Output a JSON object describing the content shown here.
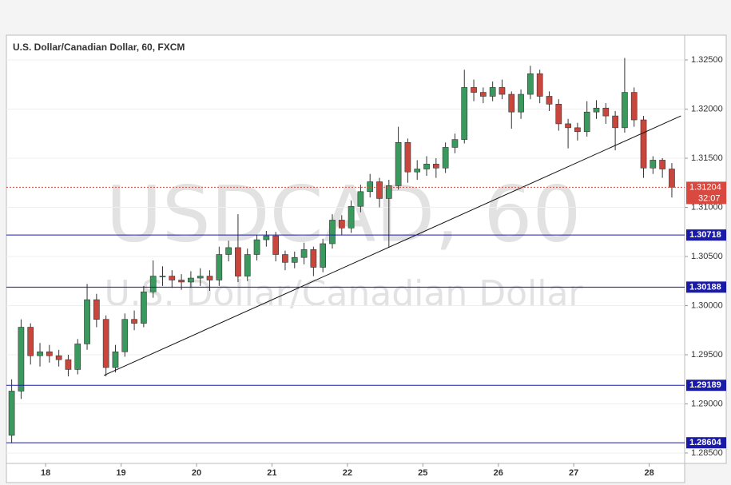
{
  "chart_data": {
    "type": "candlestick",
    "title": "U.S. Dollar/Canadian Dollar, 60, FXCM",
    "watermark": "USDCAD, 60",
    "watermark_sub": "U.S. Dollar/Canadian Dollar",
    "up_color": "#3a9a5e",
    "down_color": "#c9463d",
    "x": [
      -0.45,
      -0.325,
      -0.2,
      -0.075,
      0.05,
      0.175,
      0.3,
      0.425,
      0.55,
      0.675,
      0.8,
      0.925,
      1.05,
      1.175,
      1.3,
      1.425,
      1.55,
      1.675,
      1.8,
      1.925,
      2.05,
      2.175,
      2.3,
      2.425,
      2.55,
      2.675,
      2.8,
      2.925,
      3.05,
      3.175,
      3.3,
      3.425,
      3.55,
      3.675,
      3.8,
      3.925,
      4.05,
      4.175,
      4.3,
      4.425,
      4.55,
      4.675,
      4.8,
      4.925,
      5.05,
      5.175,
      5.3,
      5.425,
      5.55,
      5.675,
      5.8,
      5.925,
      6.05,
      6.175,
      6.3,
      6.425,
      6.55,
      6.675,
      6.8,
      6.925,
      7.05,
      7.175,
      7.3,
      7.425,
      7.55,
      7.675,
      7.8,
      7.925,
      8.05,
      8.175,
      8.3
    ],
    "open": [
      1.2868,
      1.2913,
      1.2978,
      1.2949,
      1.2953,
      1.2949,
      1.2945,
      1.2935,
      1.2961,
      1.3006,
      1.2986,
      1.2937,
      1.2953,
      1.2986,
      1.2982,
      1.3014,
      1.303,
      1.303,
      1.3026,
      1.3024,
      1.3028,
      1.303,
      1.3026,
      1.3052,
      1.3059,
      1.303,
      1.3052,
      1.3067,
      1.3071,
      1.3052,
      1.3044,
      1.3049,
      1.3057,
      1.3039,
      1.3063,
      1.3087,
      1.3079,
      1.3101,
      1.3116,
      1.3126,
      1.3109,
      1.3122,
      1.3166,
      1.3136,
      1.3139,
      1.3144,
      1.314,
      1.3161,
      1.3169,
      1.3222,
      1.3217,
      1.3213,
      1.3222,
      1.3215,
      1.3197,
      1.3215,
      1.3236,
      1.3213,
      1.3205,
      1.3185,
      1.3181,
      1.3177,
      1.3197,
      1.3201,
      1.3193,
      1.3181,
      1.3217,
      1.3189,
      1.314,
      1.3148,
      1.3139
    ],
    "high": [
      1.2925,
      1.2986,
      1.2982,
      1.2962,
      1.296,
      1.2955,
      1.295,
      1.2966,
      1.3022,
      1.3012,
      1.299,
      1.296,
      1.2992,
      1.2995,
      1.302,
      1.3046,
      1.304,
      1.3036,
      1.3032,
      1.3035,
      1.3038,
      1.3036,
      1.306,
      1.3066,
      1.3093,
      1.3058,
      1.3072,
      1.3076,
      1.3075,
      1.3056,
      1.3055,
      1.3064,
      1.306,
      1.3068,
      1.3093,
      1.3092,
      1.3107,
      1.3123,
      1.3134,
      1.313,
      1.3128,
      1.3182,
      1.317,
      1.3148,
      1.3152,
      1.315,
      1.3166,
      1.3175,
      1.324,
      1.323,
      1.3222,
      1.3228,
      1.323,
      1.3218,
      1.322,
      1.3244,
      1.324,
      1.3218,
      1.321,
      1.319,
      1.3186,
      1.3208,
      1.3209,
      1.3206,
      1.3198,
      1.3252,
      1.3222,
      1.3193,
      1.3152,
      1.315,
      1.3145
    ],
    "low": [
      1.286,
      1.2905,
      1.294,
      1.2938,
      1.2942,
      1.2938,
      1.2928,
      1.293,
      1.2955,
      1.2978,
      1.2928,
      1.2932,
      1.2948,
      1.2975,
      1.2978,
      1.3008,
      1.302,
      1.3018,
      1.3016,
      1.3018,
      1.302,
      1.3015,
      1.302,
      1.3045,
      1.3024,
      1.3025,
      1.3046,
      1.306,
      1.3045,
      1.3036,
      1.3038,
      1.3042,
      1.303,
      1.3034,
      1.3058,
      1.3072,
      1.3074,
      1.3095,
      1.311,
      1.31,
      1.3059,
      1.3118,
      1.3125,
      1.3128,
      1.3132,
      1.313,
      1.3135,
      1.3155,
      1.3165,
      1.3208,
      1.3206,
      1.3208,
      1.321,
      1.318,
      1.319,
      1.321,
      1.3206,
      1.3198,
      1.3178,
      1.316,
      1.3168,
      1.3172,
      1.319,
      1.3185,
      1.3158,
      1.3176,
      1.3182,
      1.313,
      1.3134,
      1.313,
      1.311
    ],
    "close": [
      1.2913,
      1.2978,
      1.2949,
      1.2953,
      1.2949,
      1.2945,
      1.2935,
      1.2961,
      1.3006,
      1.2986,
      1.2937,
      1.2953,
      1.2986,
      1.2982,
      1.3014,
      1.303,
      1.303,
      1.3026,
      1.3024,
      1.3028,
      1.303,
      1.3026,
      1.3052,
      1.3059,
      1.303,
      1.3052,
      1.3067,
      1.3071,
      1.3052,
      1.3044,
      1.3049,
      1.3057,
      1.3039,
      1.3063,
      1.3087,
      1.3079,
      1.3101,
      1.3116,
      1.3126,
      1.3109,
      1.3122,
      1.3166,
      1.3136,
      1.3139,
      1.3144,
      1.314,
      1.3161,
      1.3169,
      1.3222,
      1.3217,
      1.3213,
      1.3222,
      1.3215,
      1.3197,
      1.3215,
      1.3236,
      1.3213,
      1.3205,
      1.3185,
      1.3181,
      1.3177,
      1.3197,
      1.3201,
      1.3193,
      1.3181,
      1.3217,
      1.3189,
      1.314,
      1.3148,
      1.3139,
      1.31204
    ],
    "xlim": [
      -0.52,
      8.47
    ],
    "xticks": [
      {
        "value": 0,
        "label": "18"
      },
      {
        "value": 1,
        "label": "19"
      },
      {
        "value": 2,
        "label": "20"
      },
      {
        "value": 3,
        "label": "21"
      },
      {
        "value": 4,
        "label": "22"
      },
      {
        "value": 5,
        "label": "25"
      },
      {
        "value": 6,
        "label": "26"
      },
      {
        "value": 7,
        "label": "27"
      },
      {
        "value": 8,
        "label": "28"
      }
    ],
    "ylim": [
      1.28394,
      1.32752
    ],
    "yticks": [
      {
        "value": 1.285,
        "label": "1.28500"
      },
      {
        "value": 1.29,
        "label": "1.29000"
      },
      {
        "value": 1.295,
        "label": "1.29500"
      },
      {
        "value": 1.3,
        "label": "1.30000"
      },
      {
        "value": 1.305,
        "label": "1.30500"
      },
      {
        "value": 1.31,
        "label": "1.31000"
      },
      {
        "value": 1.315,
        "label": "1.31500"
      },
      {
        "value": 1.32,
        "label": "1.32000"
      },
      {
        "value": 1.325,
        "label": "1.32500"
      }
    ],
    "levels": [
      {
        "value": 1.30718,
        "label": "1.30718"
      },
      {
        "value": 1.30188,
        "label": "1.30188"
      },
      {
        "value": 1.29189,
        "label": "1.29189"
      },
      {
        "value": 1.28604,
        "label": "1.28604"
      }
    ],
    "level_color": "#1a1aa8",
    "last_price": {
      "value": 1.31204,
      "label": "1.31204"
    },
    "countdown": "32:07",
    "last_color": "#d9493f",
    "trendline": {
      "x": [
        0.773,
        8.42
      ],
      "y": [
        1.2929,
        1.3193
      ]
    }
  }
}
